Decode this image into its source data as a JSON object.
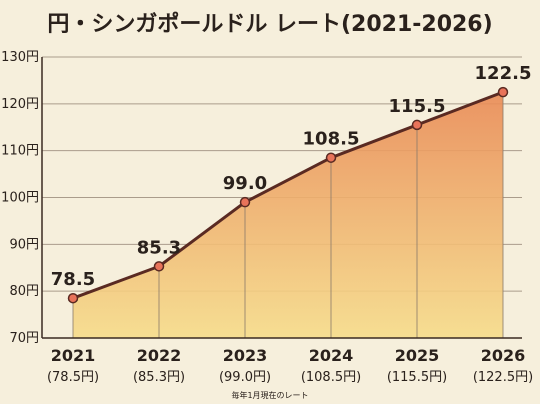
{
  "chart_data": {
    "type": "area",
    "title": "円・シンガポールドル レート(2021-2026)",
    "caption": "毎年1月現在のレート",
    "categories": [
      "2021",
      "2022",
      "2023",
      "2024",
      "2025",
      "2026"
    ],
    "category_sublabels": [
      "(78.5円)",
      "(85.3円)",
      "(99.0円)",
      "(108.5円)",
      "(115.5円)",
      "(122.5円)"
    ],
    "values": [
      78.5,
      85.3,
      99.0,
      108.5,
      115.5,
      122.5
    ],
    "data_labels": [
      "78.5",
      "85.3",
      "99.0",
      "108.5",
      "115.5",
      "122.5"
    ],
    "yticks": [
      70,
      80,
      90,
      100,
      110,
      120,
      130
    ],
    "ytick_labels": [
      "70円",
      "80円",
      "90円",
      "100円",
      "110円",
      "120円",
      "130円"
    ],
    "ylim": [
      70,
      130
    ],
    "grid": true,
    "colors": {
      "line": "#5a2a22",
      "marker_fill": "#e8735a",
      "area_top": "#e98a55",
      "area_bottom": "#f6dc8a",
      "grid": "#8a7a6a",
      "background": "#f6efdc"
    }
  }
}
